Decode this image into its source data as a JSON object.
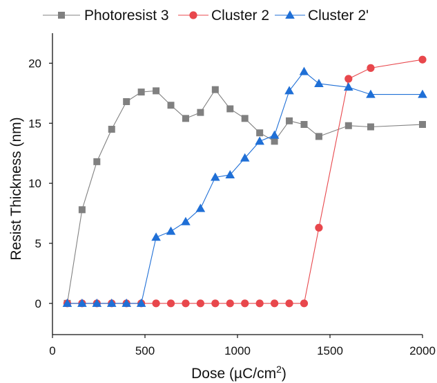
{
  "chart_data": {
    "type": "line",
    "xlabel": "Dose (µC/cm²)",
    "xlabel_parts": {
      "main": "Dose (µC/cm",
      "sup": "2",
      "close": ")"
    },
    "ylabel": "Resist Thickness (nm)",
    "xlim": [
      0,
      2000
    ],
    "ylim": [
      -2.6,
      22.5
    ],
    "x_ticks": [
      0,
      500,
      1000,
      1500,
      2000
    ],
    "y_ticks": [
      0,
      5,
      10,
      15,
      20
    ],
    "grid": false,
    "legend_position": "top",
    "series": [
      {
        "name": "Photoresist 3",
        "color": "#808080",
        "marker": "square",
        "x": [
          80,
          160,
          240,
          320,
          400,
          480,
          560,
          640,
          720,
          800,
          880,
          960,
          1040,
          1120,
          1200,
          1280,
          1360,
          1440,
          1600,
          1720,
          2000
        ],
        "y": [
          0,
          7.8,
          11.8,
          14.5,
          16.8,
          17.6,
          17.7,
          16.5,
          15.4,
          15.9,
          17.8,
          16.2,
          15.4,
          14.2,
          13.5,
          15.2,
          14.9,
          13.9,
          14.8,
          14.7,
          14.9
        ]
      },
      {
        "name": "Cluster 2",
        "color": "#e8474c",
        "marker": "circle",
        "x": [
          80,
          160,
          240,
          320,
          400,
          480,
          560,
          640,
          720,
          800,
          880,
          960,
          1040,
          1120,
          1200,
          1280,
          1360,
          1440,
          1600,
          1720,
          2000
        ],
        "y": [
          0,
          0,
          0,
          0,
          0,
          0,
          0,
          0,
          0,
          0,
          0,
          0,
          0,
          0,
          0,
          0,
          0,
          6.3,
          18.7,
          19.6,
          20.3
        ]
      },
      {
        "name": "Cluster 2'",
        "color": "#1f6fd6",
        "marker": "triangle",
        "x": [
          80,
          160,
          240,
          320,
          400,
          480,
          560,
          640,
          720,
          800,
          880,
          960,
          1040,
          1120,
          1200,
          1280,
          1360,
          1440,
          1600,
          1720,
          2000
        ],
        "y": [
          0,
          0,
          0,
          0,
          0,
          0,
          5.5,
          6.0,
          6.8,
          7.9,
          10.5,
          10.7,
          12.1,
          13.5,
          14.0,
          17.7,
          19.3,
          18.3,
          18.0,
          17.4,
          17.4
        ]
      }
    ]
  }
}
